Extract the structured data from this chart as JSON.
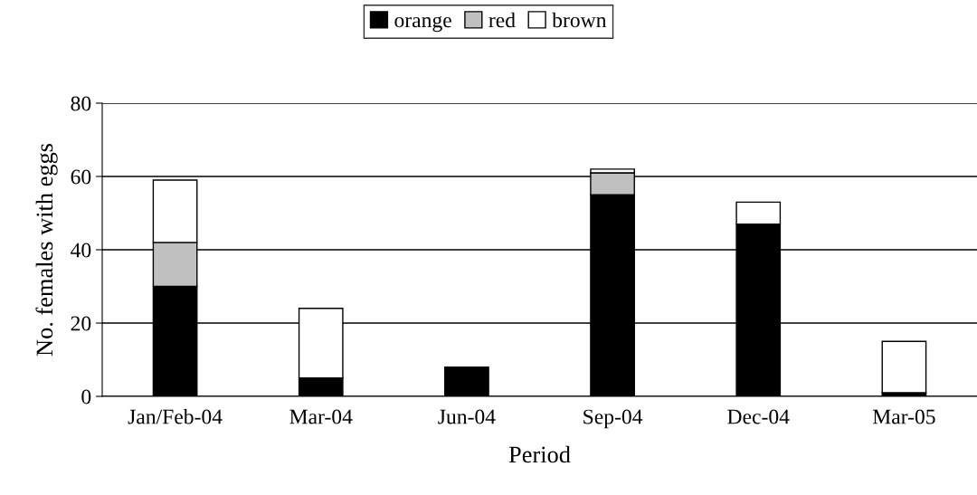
{
  "chart_data": {
    "type": "bar",
    "stacked": true,
    "xlabel": "Period",
    "ylabel": "No. females with eggs",
    "categories": [
      "Jan/Feb-04",
      "Mar-04",
      "Jun-04",
      "Sep-04",
      "Dec-04",
      "Mar-05"
    ],
    "series": [
      {
        "name": "orange",
        "color": "#000000",
        "values": [
          30,
          5,
          8,
          55,
          47,
          1
        ]
      },
      {
        "name": "red",
        "color": "#c0c0c0",
        "values": [
          12,
          null,
          null,
          6,
          null,
          null
        ]
      },
      {
        "name": "brown",
        "color": "#ffffff",
        "values": [
          17,
          19,
          null,
          1,
          6,
          14
        ]
      }
    ],
    "ylim": [
      0,
      80
    ],
    "yticks": [
      0,
      20,
      40,
      60,
      80
    ],
    "grid": "y",
    "legend": "top"
  }
}
